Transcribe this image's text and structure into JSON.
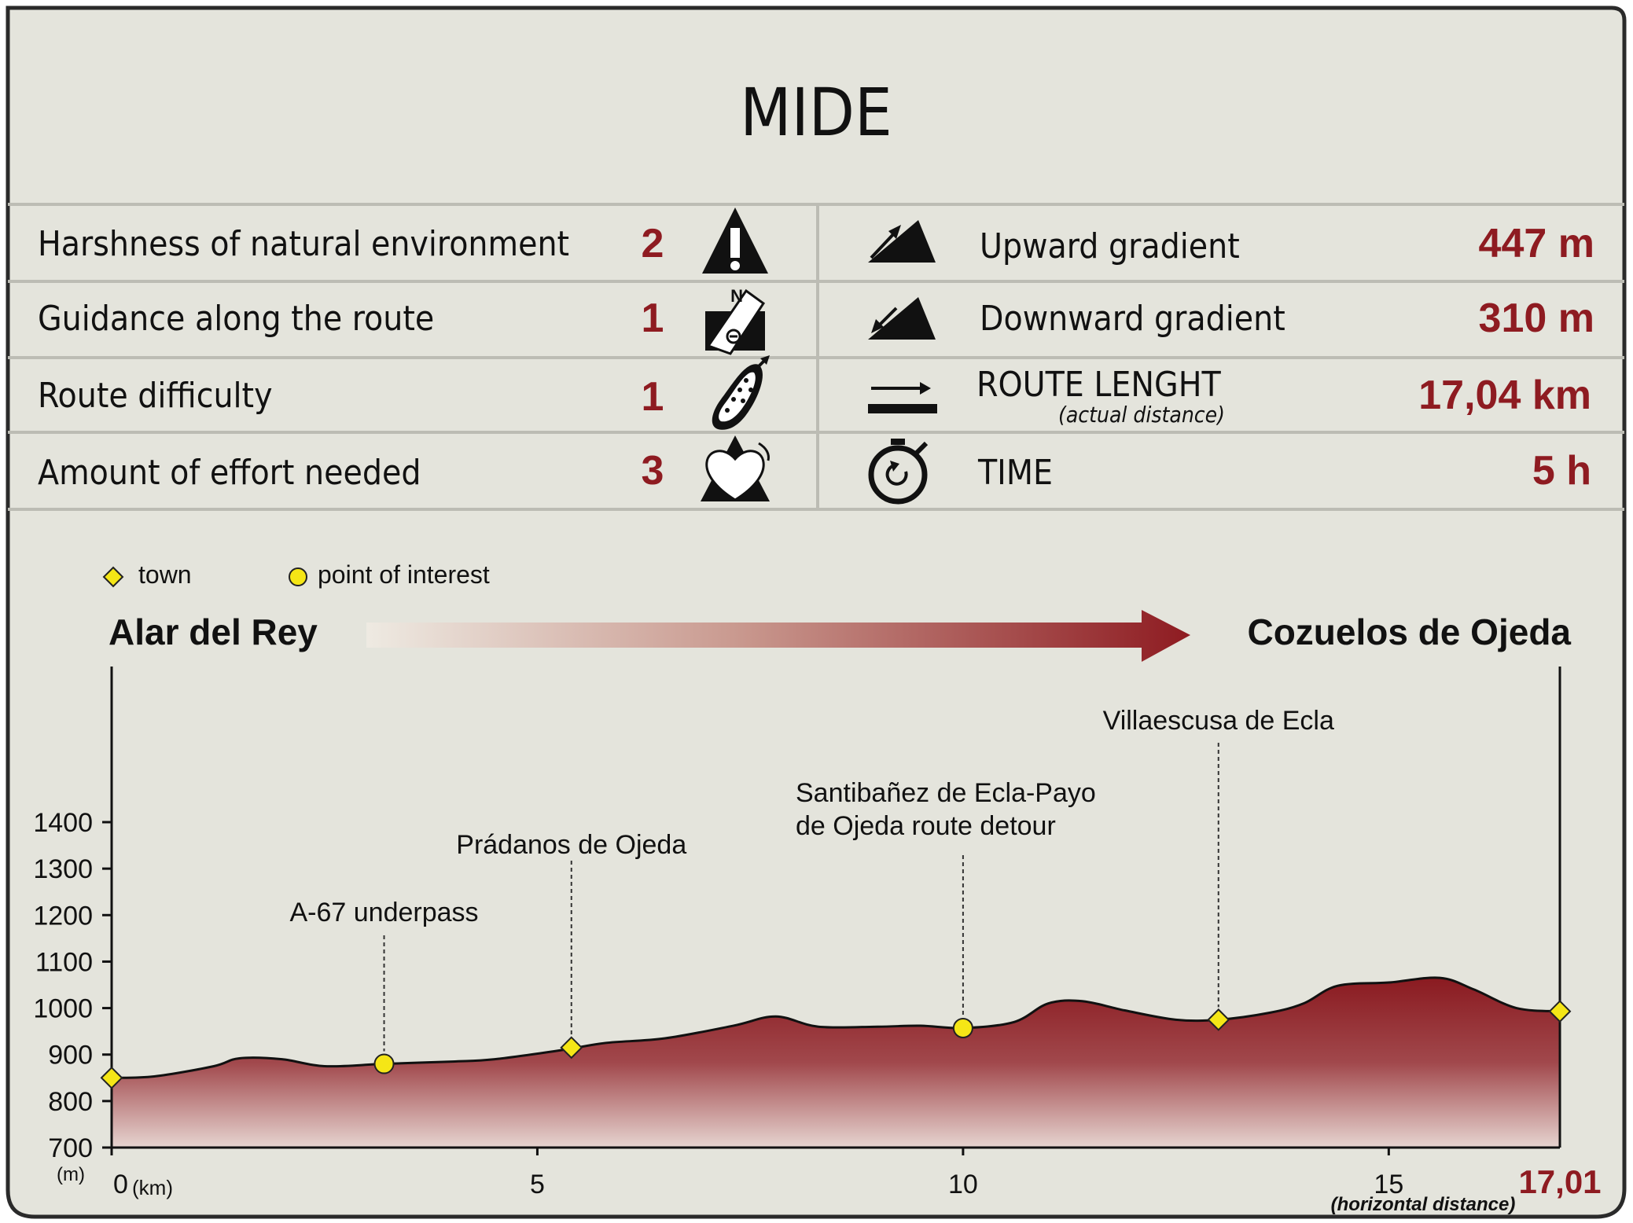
{
  "title": "MIDE",
  "colors": {
    "background": "#e4e4dc",
    "accent": "#8e1b21",
    "border": "#2a2a2a",
    "divider": "#bcbcb4",
    "marker": "#f5e616"
  },
  "mide_rows": [
    {
      "label": "Harshness of natural environment",
      "value": "2",
      "icon": "warning-icon"
    },
    {
      "label": "Guidance along the route",
      "value": "1",
      "icon": "compass-signpost-icon"
    },
    {
      "label": "Route difficulty",
      "value": "1",
      "icon": "footprint-icon"
    },
    {
      "label": "Amount of effort needed",
      "value": "3",
      "icon": "heart-mountain-icon"
    }
  ],
  "stats": [
    {
      "label": "Upward gradient",
      "value": "447 m",
      "icon": "upward-gradient-icon"
    },
    {
      "label": "Downward gradient",
      "value": "310 m",
      "icon": "downward-gradient-icon"
    },
    {
      "label": "ROUTE LENGHT",
      "sublabel": "(actual distance)",
      "value": "17,04 km",
      "icon": "route-length-icon"
    },
    {
      "label": "TIME",
      "value": "5 h",
      "icon": "stopwatch-icon"
    }
  ],
  "legend": {
    "town": "town",
    "poi": "point of interest"
  },
  "route": {
    "start": "Alar del Rey",
    "end": "Cozuelos de Ojeda"
  },
  "chart_data": {
    "type": "area",
    "x_unit": "(km)",
    "y_unit": "(m)",
    "x_caption": "(horizontal distance)",
    "x_end_label": "17,01",
    "xlim": [
      0,
      17.01
    ],
    "ylim": [
      700,
      1400
    ],
    "x_ticks": [
      0,
      5,
      10,
      15
    ],
    "y_ticks": [
      700,
      800,
      900,
      1000,
      1100,
      1200,
      1300,
      1400
    ],
    "profile": {
      "x": [
        0,
        0.5,
        1.2,
        1.5,
        2.0,
        2.5,
        3.2,
        4.0,
        4.5,
        5.3,
        5.8,
        6.5,
        7.3,
        7.8,
        8.3,
        9.0,
        9.5,
        10.0,
        10.6,
        11.0,
        11.4,
        11.9,
        12.5,
        13.0,
        13.6,
        14.0,
        14.4,
        15.0,
        15.6,
        16.0,
        16.5,
        17.01
      ],
      "y": [
        850,
        853,
        875,
        892,
        890,
        875,
        880,
        885,
        890,
        910,
        925,
        935,
        962,
        982,
        960,
        960,
        962,
        957,
        970,
        1010,
        1015,
        995,
        975,
        975,
        990,
        1010,
        1048,
        1055,
        1065,
        1040,
        1000,
        993
      ]
    },
    "points": [
      {
        "kind": "town",
        "x": 0,
        "y": 850
      },
      {
        "kind": "poi",
        "x": 3.2,
        "y": 880,
        "label": "A-67 underpass"
      },
      {
        "kind": "town",
        "x": 5.4,
        "y": 915,
        "label": "Prádanos de Ojeda"
      },
      {
        "kind": "poi",
        "x": 10.0,
        "y": 957,
        "label": "Santibañez de Ecla-Payo de Ojeda route detour"
      },
      {
        "kind": "town",
        "x": 13.0,
        "y": 975,
        "label": "Villaescusa de Ecla"
      },
      {
        "kind": "town",
        "x": 17.01,
        "y": 993
      }
    ]
  }
}
